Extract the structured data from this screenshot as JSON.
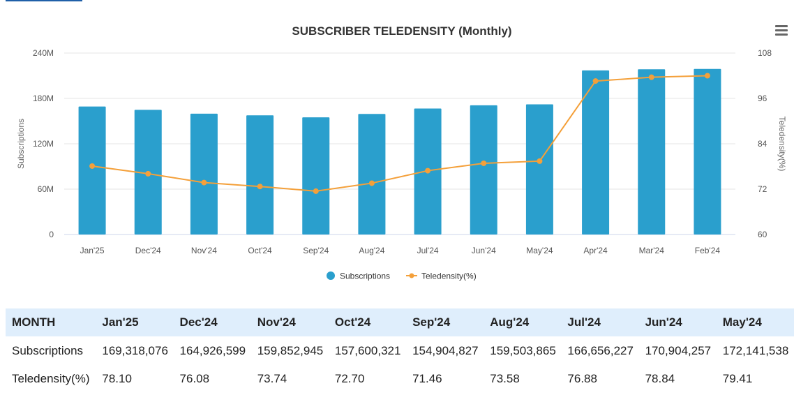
{
  "chart_data": {
    "type": "bar",
    "title": "SUBSCRIBER TELEDENSITY (Monthly)",
    "categories": [
      "Jan'25",
      "Dec'24",
      "Nov'24",
      "Oct'24",
      "Sep'24",
      "Aug'24",
      "Jul'24",
      "Jun'24",
      "May'24",
      "Apr'24",
      "Mar'24",
      "Feb'24"
    ],
    "series": [
      {
        "name": "Subscriptions",
        "type": "bar",
        "axis": "left",
        "color": "#2a9fcd",
        "values": [
          169318076,
          164926599,
          159852945,
          157600321,
          154904827,
          159503865,
          166656227,
          170904257,
          172141538,
          217000000,
          218500000,
          219000000
        ]
      },
      {
        "name": "Teledensity(%)",
        "type": "line",
        "axis": "right",
        "color": "#f4a03a",
        "values": [
          78.1,
          76.08,
          73.74,
          72.7,
          71.46,
          73.58,
          76.88,
          78.84,
          79.41,
          100.6,
          101.6,
          102.0
        ]
      }
    ],
    "y_left": {
      "label": "Subscriptions",
      "ylim": [
        0,
        240000000
      ],
      "ticks": [
        "0",
        "60M",
        "120M",
        "180M",
        "240M"
      ]
    },
    "y_right": {
      "label": "Teledensity(%)",
      "ylim": [
        60,
        108
      ],
      "ticks": [
        "60",
        "72",
        "84",
        "96",
        "108"
      ]
    },
    "grid": true,
    "legend": "bottom"
  },
  "menu": {
    "icon": "hamburger-menu-icon"
  },
  "table": {
    "header": [
      "MONTH",
      "Jan'25",
      "Dec'24",
      "Nov'24",
      "Oct'24",
      "Sep'24",
      "Aug'24",
      "Jul'24",
      "Jun'24",
      "May'24"
    ],
    "subscriptions": [
      "Subscriptions",
      "169,318,076",
      "164,926,599",
      "159,852,945",
      "157,600,321",
      "154,904,827",
      "159,503,865",
      "166,656,227",
      "170,904,257",
      "172,141,538"
    ],
    "teledensity": [
      "Teledensity(%)",
      "78.10",
      "76.08",
      "73.74",
      "72.70",
      "71.46",
      "73.58",
      "76.88",
      "78.84",
      "79.41"
    ]
  }
}
